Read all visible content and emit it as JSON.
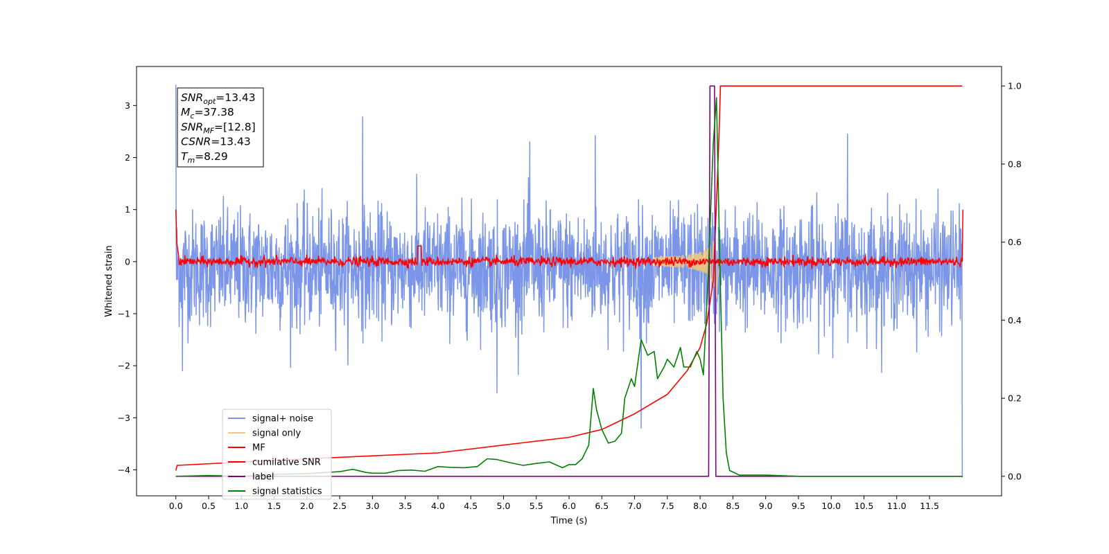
{
  "chart_data": {
    "type": "line",
    "xlabel": "Time (s)",
    "ylabel": "Whitened strain",
    "xlim": [
      -0.6,
      12.6
    ],
    "ylim_left": [
      -4.5,
      3.75
    ],
    "ylim_right": [
      -0.05,
      1.05
    ],
    "x_ticks": [
      "0.0",
      "0.5",
      "1.0",
      "1.5",
      "2.0",
      "2.5",
      "3.0",
      "3.5",
      "4.0",
      "4.5",
      "5.0",
      "5.5",
      "6.0",
      "6.5",
      "7.0",
      "7.5",
      "8.0",
      "8.5",
      "9.0",
      "9.5",
      "10.0",
      "10.5",
      "11.0",
      "11.5"
    ],
    "y_ticks_left": [
      "3",
      "2",
      "1",
      "0",
      "−1",
      "−2",
      "−3",
      "−4"
    ],
    "y_ticks_right": [
      "1.0",
      "0.8",
      "0.6",
      "0.4",
      "0.2",
      "0.0"
    ],
    "annotation": {
      "lines": [
        {
          "base": "SNR",
          "sub": "opt",
          "value": "=13.43"
        },
        {
          "base": "M",
          "sub": "c",
          "value": "=37.38"
        },
        {
          "base": "SNR",
          "sub": "MF",
          "value": "=[12.8]"
        },
        {
          "base": "CSNR",
          "sub": "",
          "value": "=13.43"
        },
        {
          "base": "T",
          "sub": "m",
          "value": "=8.29"
        }
      ]
    },
    "legend": {
      "placement": "lower-left",
      "entries": [
        {
          "name": "signal+ noise",
          "color": "#7b96e8"
        },
        {
          "name": "signal only",
          "color": "#f5c97a"
        },
        {
          "name": "MF",
          "color": "#ff0000"
        },
        {
          "name": "cumilative SNR",
          "color": "#ff0000"
        },
        {
          "name": "label",
          "color": "#800080"
        },
        {
          "name": "signal statistics",
          "color": "#008000"
        }
      ]
    },
    "series": [
      {
        "name": "signal+ noise",
        "axis": "left",
        "color": "#7b96e8",
        "description_points": [
          [
            0.0,
            3.4
          ],
          [
            0.1,
            -2.1
          ],
          [
            2.85,
            2.78
          ],
          [
            4.9,
            -2.52
          ],
          [
            5.4,
            2.3
          ],
          [
            6.4,
            2.42
          ],
          [
            7.1,
            -3.2
          ],
          [
            10.25,
            2.45
          ],
          [
            12.0,
            -4.15
          ]
        ],
        "envelope": {
          "upper": 1.0,
          "lower": -1.4
        }
      },
      {
        "name": "signal only",
        "axis": "left",
        "color": "#f5c97a",
        "chirp_peak_time": 8.25,
        "peak_amplitude": 0.9
      },
      {
        "name": "MF",
        "axis": "left",
        "color": "#ff0000",
        "points": [
          [
            0.0,
            1.0
          ],
          [
            0.02,
            0.3
          ],
          [
            0.1,
            0.0
          ],
          [
            3.7,
            0.3
          ],
          [
            3.8,
            0.05
          ],
          [
            12.0,
            0.0
          ],
          [
            12.01,
            1.0
          ]
        ]
      },
      {
        "name": "cumilative SNR",
        "axis": "right",
        "color": "#ff0000",
        "points": [
          [
            0.0,
            0.015
          ],
          [
            0.02,
            0.028
          ],
          [
            2.0,
            0.045
          ],
          [
            4.0,
            0.06
          ],
          [
            5.0,
            0.08
          ],
          [
            6.0,
            0.1
          ],
          [
            6.5,
            0.12
          ],
          [
            7.0,
            0.16
          ],
          [
            7.5,
            0.21
          ],
          [
            7.8,
            0.27
          ],
          [
            8.0,
            0.33
          ],
          [
            8.1,
            0.39
          ],
          [
            8.2,
            0.5
          ],
          [
            8.25,
            0.7
          ],
          [
            8.29,
            0.88
          ],
          [
            8.31,
            1.0
          ],
          [
            12.0,
            1.0
          ]
        ]
      },
      {
        "name": "label",
        "axis": "right",
        "color": "#800080",
        "points": [
          [
            0.0,
            0.0
          ],
          [
            8.13,
            0.0
          ],
          [
            8.15,
            1.0
          ],
          [
            8.22,
            1.0
          ],
          [
            8.24,
            0.0
          ],
          [
            12.0,
            0.0
          ]
        ]
      },
      {
        "name": "signal statistics",
        "axis": "right",
        "color": "#008000",
        "points": [
          [
            0.0,
            0.0
          ],
          [
            0.5,
            0.002
          ],
          [
            1.0,
            0.0
          ],
          [
            1.5,
            0.005
          ],
          [
            2.0,
            0.007
          ],
          [
            2.3,
            0.01
          ],
          [
            2.5,
            0.012
          ],
          [
            2.7,
            0.018
          ],
          [
            2.9,
            0.01
          ],
          [
            3.0,
            0.008
          ],
          [
            3.2,
            0.008
          ],
          [
            3.4,
            0.015
          ],
          [
            3.6,
            0.016
          ],
          [
            3.8,
            0.013
          ],
          [
            4.0,
            0.025
          ],
          [
            4.2,
            0.023
          ],
          [
            4.4,
            0.022
          ],
          [
            4.6,
            0.025
          ],
          [
            4.75,
            0.045
          ],
          [
            4.9,
            0.043
          ],
          [
            5.1,
            0.035
          ],
          [
            5.3,
            0.028
          ],
          [
            5.5,
            0.033
          ],
          [
            5.7,
            0.037
          ],
          [
            5.9,
            0.022
          ],
          [
            6.0,
            0.03
          ],
          [
            6.1,
            0.03
          ],
          [
            6.2,
            0.045
          ],
          [
            6.3,
            0.08
          ],
          [
            6.37,
            0.225
          ],
          [
            6.42,
            0.17
          ],
          [
            6.5,
            0.12
          ],
          [
            6.6,
            0.085
          ],
          [
            6.7,
            0.09
          ],
          [
            6.8,
            0.11
          ],
          [
            6.85,
            0.2
          ],
          [
            6.95,
            0.25
          ],
          [
            7.0,
            0.23
          ],
          [
            7.1,
            0.35
          ],
          [
            7.2,
            0.31
          ],
          [
            7.3,
            0.32
          ],
          [
            7.35,
            0.25
          ],
          [
            7.45,
            0.28
          ],
          [
            7.5,
            0.3
          ],
          [
            7.55,
            0.29
          ],
          [
            7.6,
            0.28
          ],
          [
            7.7,
            0.33
          ],
          [
            7.75,
            0.28
          ],
          [
            7.85,
            0.28
          ],
          [
            7.95,
            0.32
          ],
          [
            8.0,
            0.3
          ],
          [
            8.05,
            0.26
          ],
          [
            8.12,
            0.5
          ],
          [
            8.2,
            0.85
          ],
          [
            8.25,
            0.97
          ],
          [
            8.3,
            0.55
          ],
          [
            8.35,
            0.2
          ],
          [
            8.4,
            0.06
          ],
          [
            8.45,
            0.015
          ],
          [
            8.6,
            0.003
          ],
          [
            9.0,
            0.003
          ],
          [
            9.5,
            0.0
          ],
          [
            12.0,
            0.0
          ]
        ]
      }
    ]
  }
}
